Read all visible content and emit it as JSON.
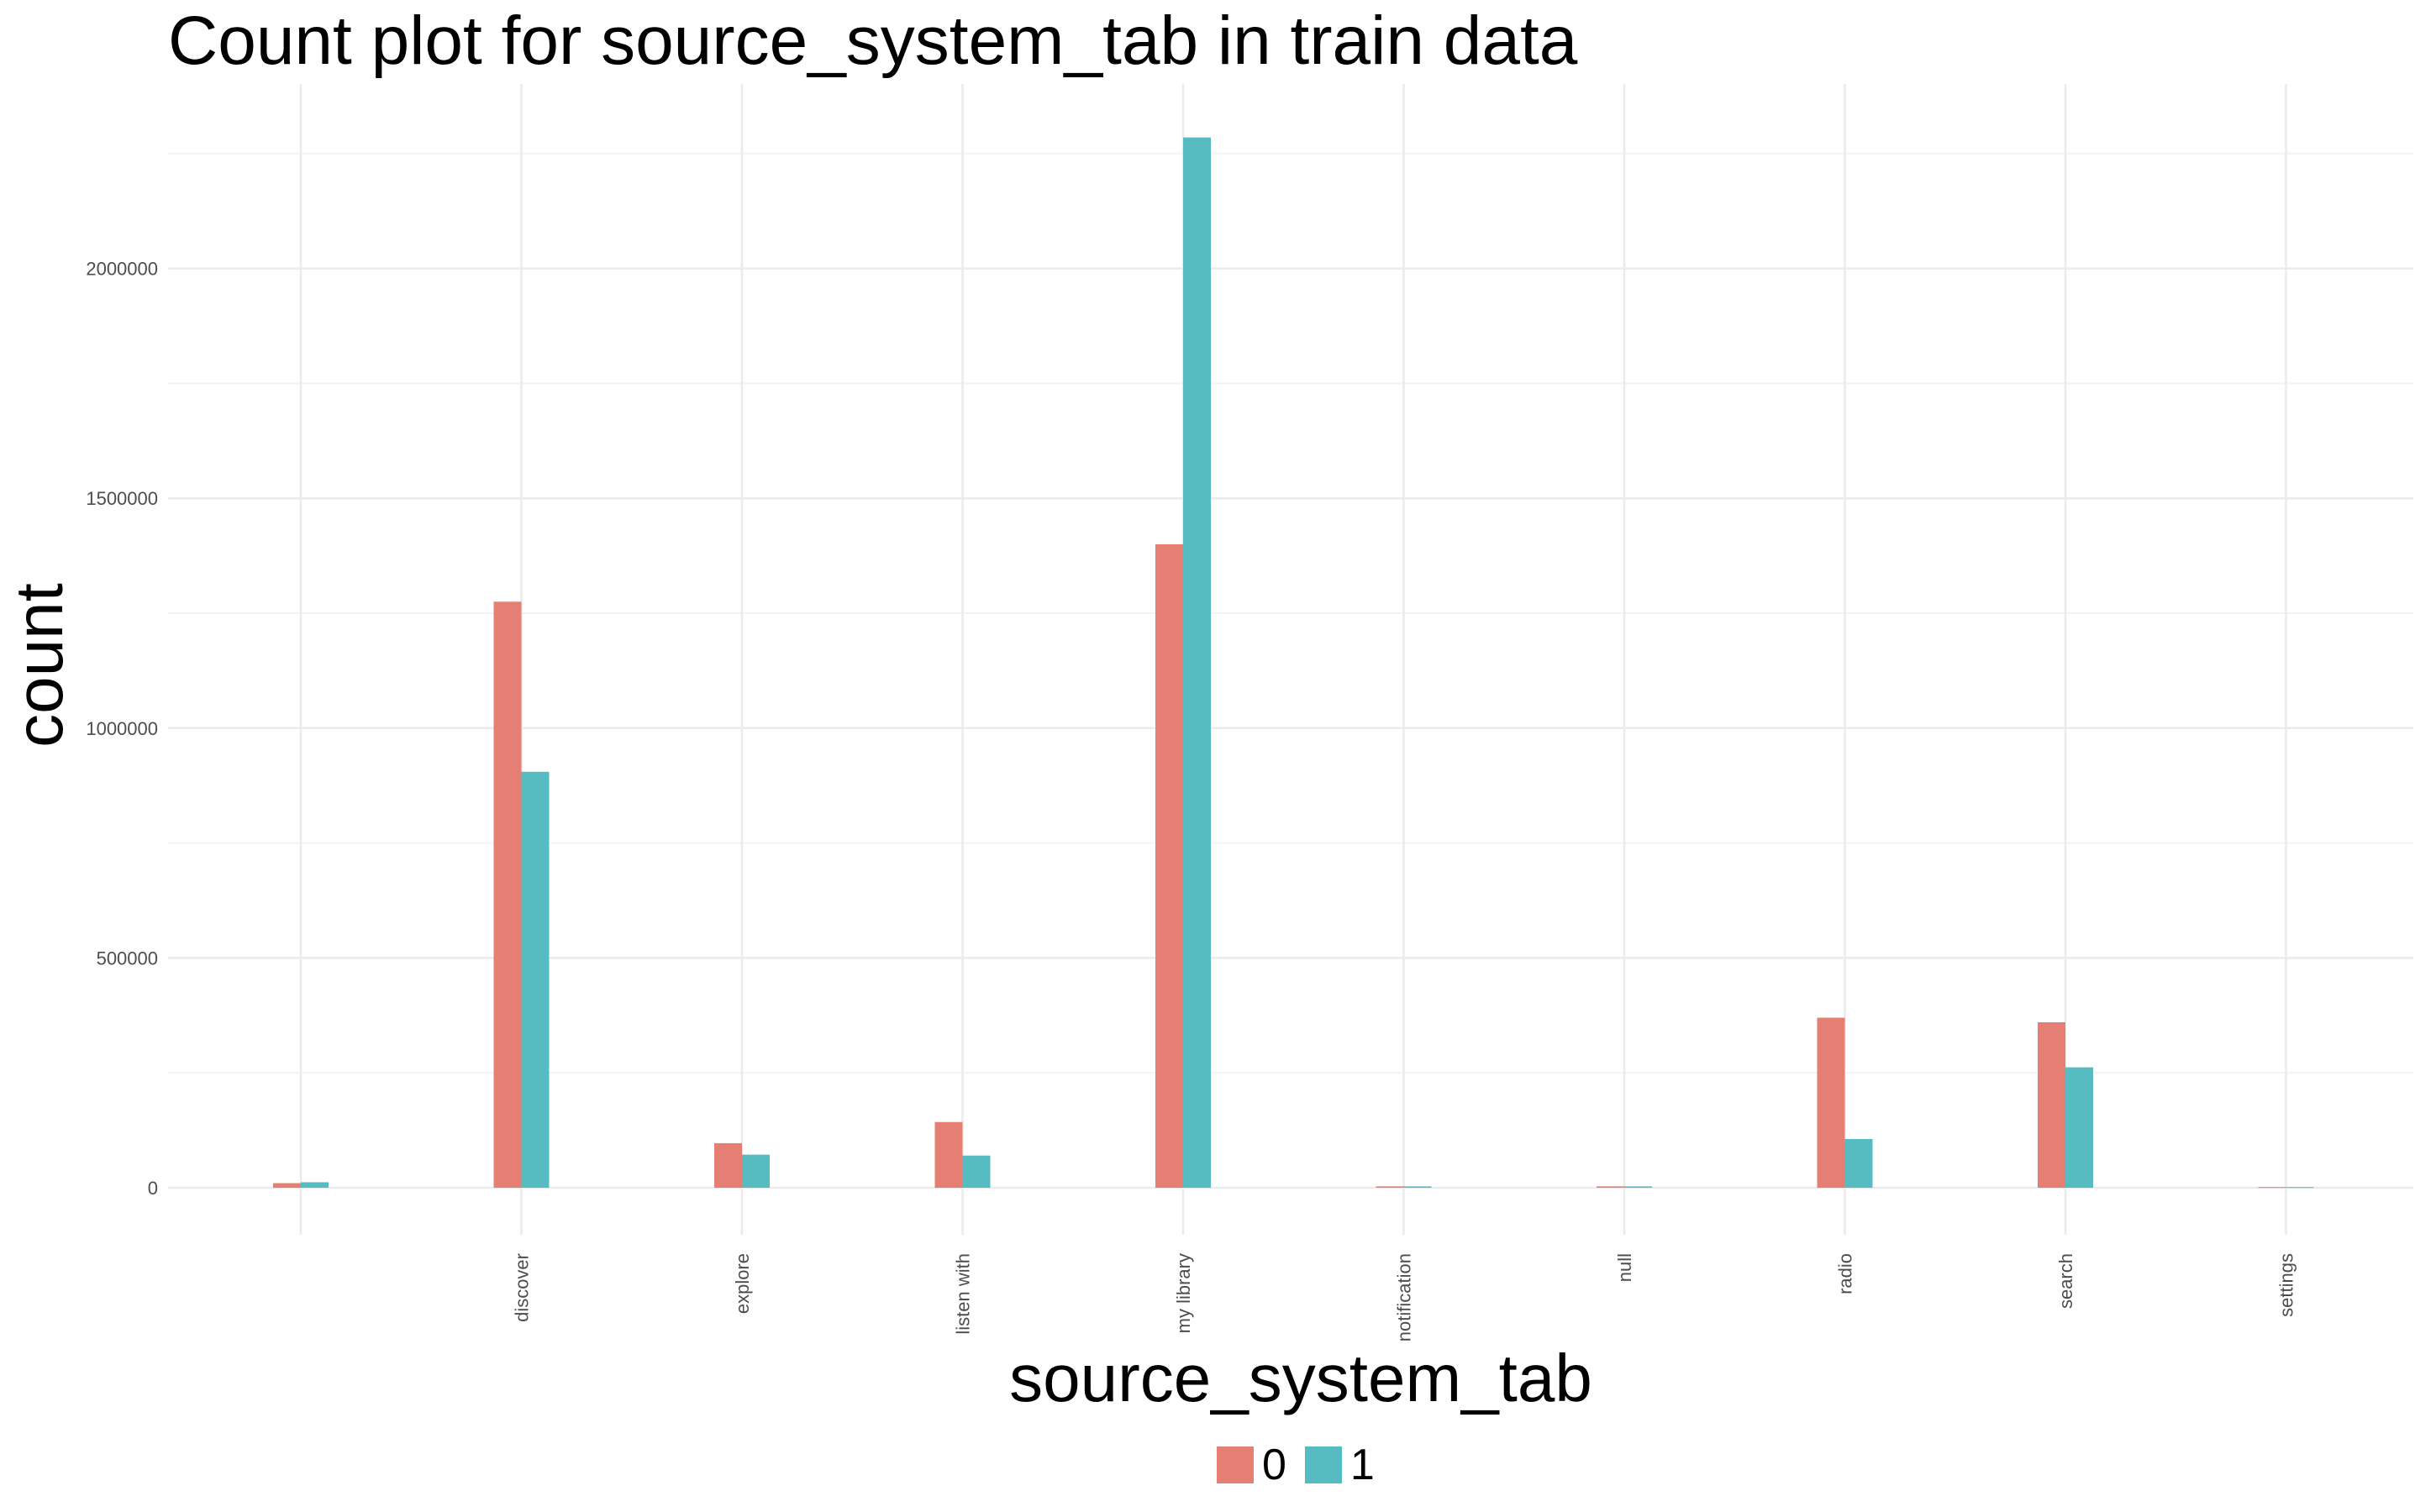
{
  "chart_data": {
    "type": "bar",
    "title": "Count plot for source_system_tab in train data",
    "xlabel": "source_system_tab",
    "ylabel": "count",
    "categories": [
      "",
      "discover",
      "explore",
      "listen with",
      "my library",
      "notification",
      "null",
      "radio",
      "search",
      "settings"
    ],
    "series": [
      {
        "name": "0",
        "color": "#E57F73",
        "values": [
          10000,
          1275000,
          97000,
          143000,
          1400000,
          3000,
          3000,
          370000,
          360000,
          1500
        ]
      },
      {
        "name": "1",
        "color": "#56BCC2",
        "values": [
          12000,
          905000,
          72000,
          70000,
          2285000,
          3000,
          3000,
          106000,
          262000,
          1500
        ]
      }
    ],
    "yticks": [
      0,
      500000,
      1000000,
      1500000,
      2000000
    ],
    "ylim": [
      0,
      2400000
    ],
    "grid": true,
    "legend_position": "bottom"
  }
}
